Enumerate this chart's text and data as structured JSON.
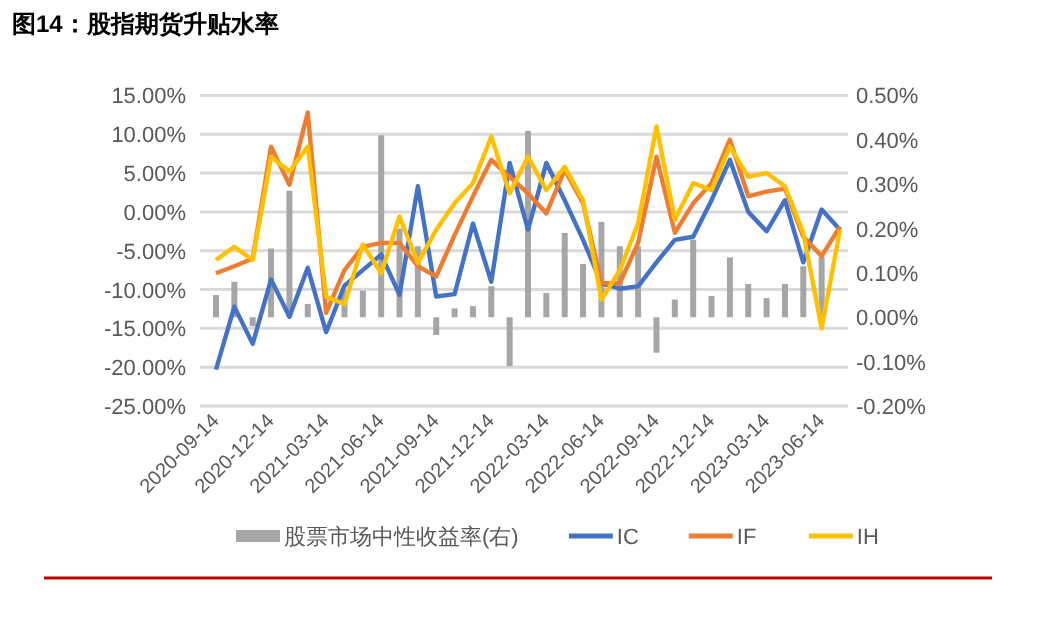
{
  "chart_data": {
    "type": "line",
    "title": "图14：股指期货升贴水率",
    "categories": [
      "2020-09-14",
      null,
      null,
      "2020-12-14",
      null,
      null,
      "2021-03-14",
      null,
      null,
      "2021-06-14",
      null,
      null,
      "2021-09-14",
      null,
      null,
      "2021-12-14",
      null,
      null,
      "2022-03-14",
      null,
      null,
      "2022-06-14",
      null,
      null,
      "2022-09-14",
      null,
      null,
      "2022-12-14",
      null,
      null,
      "2023-03-14",
      null,
      null,
      "2023-06-14",
      null
    ],
    "series": [
      {
        "name": "股票市场中性收益率(右)",
        "type": "bar",
        "axis": "y2",
        "color": "#a6a6a6",
        "values": [
          0.05,
          0.08,
          -0.02,
          0.155,
          0.285,
          0.03,
          null,
          0.06,
          0.06,
          0.41,
          0.2,
          0.16,
          -0.04,
          0.02,
          0.025,
          0.07,
          -0.11,
          0.42,
          0.055,
          0.19,
          0.12,
          0.215,
          0.16,
          0.16,
          -0.08,
          0.04,
          0.175,
          0.048,
          0.135,
          0.075,
          0.043,
          0.075,
          0.115,
          0.135,
          null
        ]
      },
      {
        "name": "IC",
        "color": "#4472c4",
        "values": [
          -20.3,
          -12.2,
          -17,
          -8.7,
          -13.5,
          -7.2,
          -15.5,
          -9.5,
          -7.5,
          -5.5,
          -10.7,
          3.3,
          -10.9,
          -10.6,
          -1.5,
          -9.0,
          6.3,
          -2.3,
          6.3,
          1.5,
          -3.6,
          -9.2,
          -9.9,
          -9.6,
          -6.5,
          -3.6,
          -3.2,
          1.5,
          6.7,
          0,
          -2.5,
          1.5,
          -6.5,
          0.3,
          -2.3
        ]
      },
      {
        "name": "IF",
        "color": "#ed7d31",
        "values": [
          -7.9,
          -7.0,
          -6.0,
          8.4,
          3.5,
          12.8,
          -13,
          -7.5,
          -4.5,
          -4.0,
          -4.0,
          -7.0,
          -8.3,
          -3,
          2,
          6.7,
          4.5,
          2.4,
          -0.2,
          5.4,
          1.1,
          -9.2,
          -9.2,
          -4.0,
          7.1,
          -2.7,
          1.1,
          3.7,
          9.3,
          2.0,
          2.6,
          3.0,
          -3.2,
          -5.7,
          -1.9
        ]
      },
      {
        "name": "IH",
        "color": "#ffc000",
        "values": [
          -6.2,
          -4.5,
          -6.2,
          7.1,
          5.2,
          8.4,
          -10.9,
          -11.9,
          -4.2,
          -7.9,
          -0.6,
          -6.6,
          -2.3,
          1.1,
          3.7,
          9.7,
          2.4,
          7.1,
          2.8,
          5.8,
          1.5,
          -11.3,
          -7.5,
          -1.5,
          11.0,
          -1.0,
          3.7,
          2.8,
          8.4,
          4.5,
          5.0,
          3.3,
          -2.7,
          -15.0,
          -2.3
        ]
      }
    ],
    "ylim": [
      -25,
      15
    ],
    "yticks": [
      {
        "value": 15,
        "label": "15.00%"
      },
      {
        "value": 10,
        "label": "10.00%"
      },
      {
        "value": 5,
        "label": "5.00%"
      },
      {
        "value": 0,
        "label": "0.00%"
      },
      {
        "value": -5,
        "label": "-5.00%"
      },
      {
        "value": -10,
        "label": "-10.00%"
      },
      {
        "value": -15,
        "label": "-15.00%"
      },
      {
        "value": -20,
        "label": "-20.00%"
      },
      {
        "value": -25,
        "label": "-25.00%"
      }
    ],
    "y2lim": [
      -0.2,
      0.5
    ],
    "y2ticks": [
      {
        "value": 0.5,
        "label": "0.50%"
      },
      {
        "value": 0.4,
        "label": "0.40%"
      },
      {
        "value": 0.3,
        "label": "0.30%"
      },
      {
        "value": 0.2,
        "label": "0.20%"
      },
      {
        "value": 0.1,
        "label": "0.10%"
      },
      {
        "value": 0,
        "label": "0.00%"
      },
      {
        "value": -0.1,
        "label": "-0.10%"
      },
      {
        "value": -0.2,
        "label": "-0.20%"
      }
    ],
    "grid": "y",
    "legend": "bottom",
    "marker": "none",
    "line_style": "solid"
  }
}
